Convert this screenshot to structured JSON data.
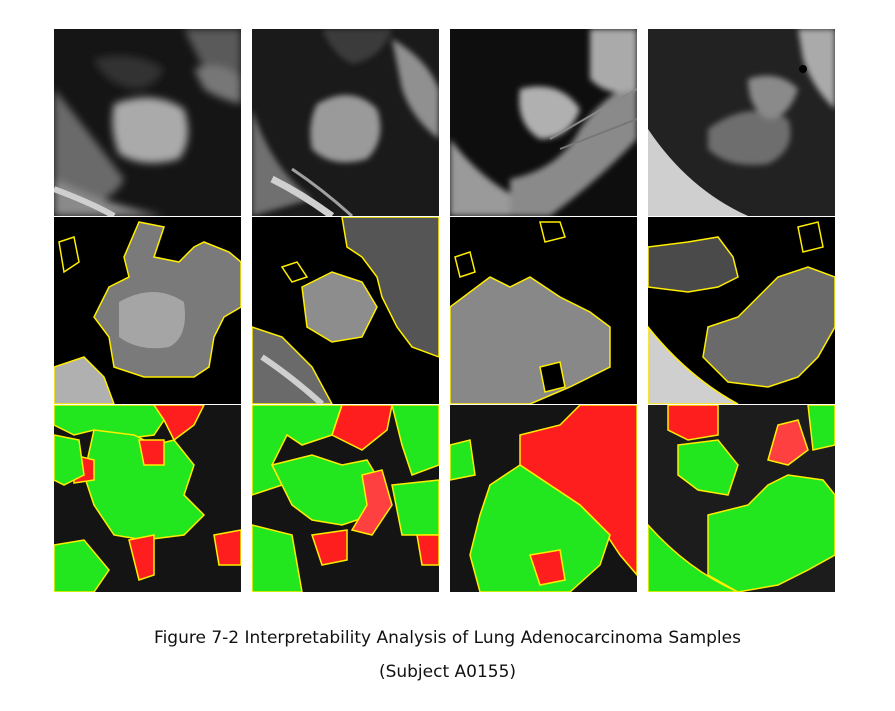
{
  "figure": {
    "caption_line1": "Figure 7-2 Interpretability Analysis of Lung Adenocarcinoma Samples",
    "caption_line2": "(Subject A0155)"
  },
  "grid": {
    "rows": [
      {
        "name": "original-ct",
        "panels": 4
      },
      {
        "name": "superpixel-segmentation",
        "panels": 4
      },
      {
        "name": "contribution-overlay",
        "panels": 4
      }
    ],
    "colors": {
      "boundary": "#ffee00",
      "positive_region": "#22e61e",
      "negative_region": "#ff1e1e",
      "lung_field": "#111111",
      "nodule": "#9a9a9a"
    }
  }
}
